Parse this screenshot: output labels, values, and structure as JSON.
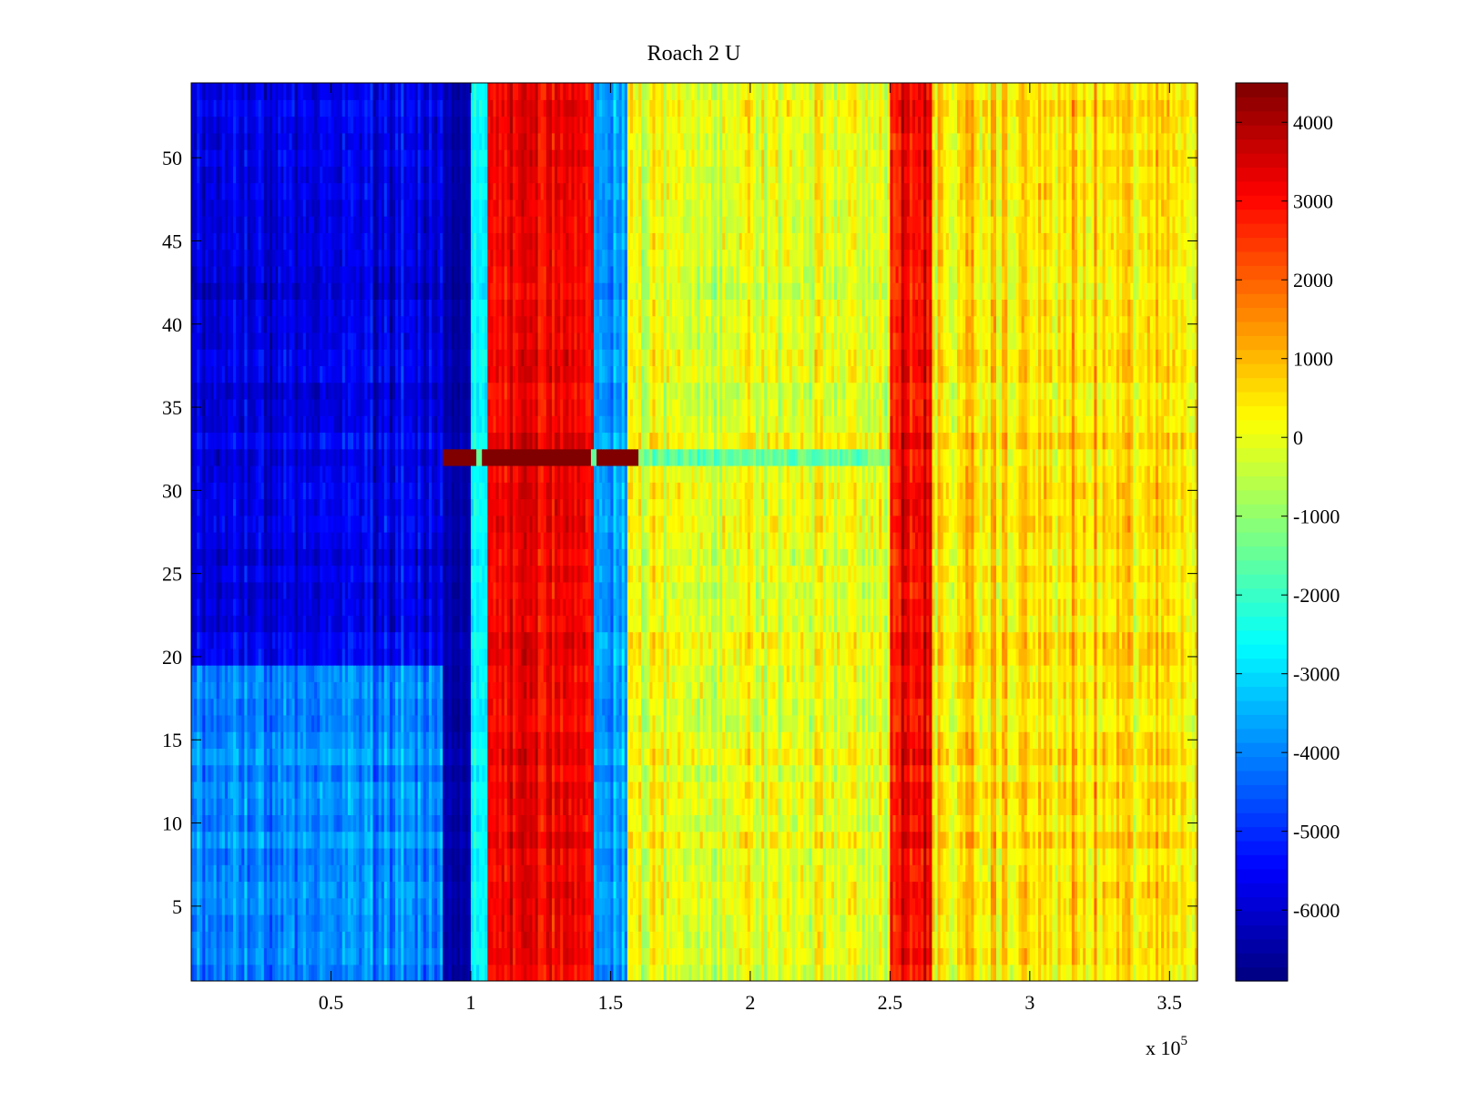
{
  "chart_data": {
    "type": "heatmap",
    "title": "Roach 2 U",
    "xlabel": "",
    "ylabel": "",
    "x_multiplier_label": "x 10",
    "x_multiplier_exponent": "5",
    "xlim": [
      0,
      3.6
    ],
    "ylim": [
      0.5,
      54.5
    ],
    "x_ticks": [
      0.5,
      1,
      1.5,
      2,
      2.5,
      3,
      3.5
    ],
    "x_tick_labels": [
      "0.5",
      "1",
      "1.5",
      "2",
      "2.5",
      "3",
      "3.5"
    ],
    "y_ticks": [
      5,
      10,
      15,
      20,
      25,
      30,
      35,
      40,
      45,
      50
    ],
    "y_tick_labels": [
      "5",
      "10",
      "15",
      "20",
      "25",
      "30",
      "35",
      "40",
      "45",
      "50"
    ],
    "colorbar": {
      "colormap": "jet",
      "clim": [
        -6900,
        4500
      ],
      "ticks": [
        4000,
        3000,
        2000,
        1000,
        0,
        -1000,
        -2000,
        -3000,
        -4000,
        -5000,
        -6000
      ],
      "tick_labels": [
        "4000",
        "3000",
        "2000",
        "1000",
        "0",
        "-1000",
        "-2000",
        "-3000",
        "-4000",
        "-5000",
        "-6000"
      ]
    },
    "column_bands": [
      {
        "x_range": [
          0,
          0.9
        ],
        "approx_value": -5200,
        "note": "blue, darker for rows 20-54, lighter cyan-blue for rows 1-19"
      },
      {
        "x_range": [
          0.9,
          1.0
        ],
        "approx_value": -6500
      },
      {
        "x_range": [
          1.0,
          1.06
        ],
        "approx_value": -2500
      },
      {
        "x_range": [
          1.06,
          1.44
        ],
        "approx_value": 3200
      },
      {
        "x_range": [
          1.44,
          1.56
        ],
        "approx_value": -3500
      },
      {
        "x_range": [
          1.56,
          2.5
        ],
        "approx_value": 0
      },
      {
        "x_range": [
          2.5,
          2.65
        ],
        "approx_value": 3000
      },
      {
        "x_range": [
          2.65,
          3.6
        ],
        "approx_value": 500
      }
    ],
    "highlighted_row": {
      "y": 32,
      "x_range": [
        0.9,
        1.6
      ],
      "approx_value": 4500
    }
  }
}
